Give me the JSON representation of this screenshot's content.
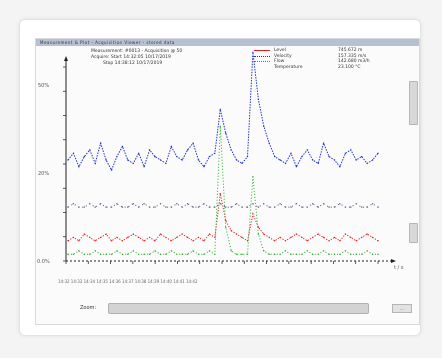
{
  "window": {
    "title": "Measurement & Plot - Acquisition Viewer - stored data"
  },
  "header": {
    "line1": "Measurement: #0013 - Acquisition @ 50",
    "line2": "Acquire: Start 14:32:05  10/17/2019",
    "line3": "Stop  14:38:12  10/17/2019"
  },
  "legend": [
    {
      "label": "Level",
      "value": "745.672  m",
      "color": "#dd2222",
      "style": "solid"
    },
    {
      "label": "Velocity",
      "value": "157.335  m/s",
      "color": "#2233cc",
      "style": "dotted"
    },
    {
      "label": "Flow",
      "value": "142.680  m3/h",
      "color": "#22aa22",
      "style": "dotted"
    },
    {
      "label": "Temperature",
      "value": "23.100  °C",
      "color": "#444444",
      "style": "none"
    }
  ],
  "y_axis": {
    "top_label": "50%",
    "mid_label": "20%",
    "bottom_label": "0.0%"
  },
  "x_axis": {
    "end_label": "t / s",
    "tick_row": "14:32   14:33   14:34   14:35   14:36   14:37   14:38   14:39   14:40   14:41   14:42"
  },
  "footer": {
    "scroll_label": "Zoom:",
    "button_label": "..."
  },
  "colors": {
    "level": "#dd2222",
    "velocity": "#2233cc",
    "flow": "#22aa22",
    "temp": "#333333",
    "background": "#f4f4f4"
  },
  "chart_data": {
    "type": "line",
    "series": [
      {
        "name": "Velocity",
        "values": [
          30,
          32,
          28,
          31,
          33,
          29,
          35,
          30,
          27,
          31,
          34,
          30,
          29,
          32,
          28,
          33,
          31,
          30,
          29,
          34,
          31,
          30,
          33,
          35,
          30,
          28,
          31,
          32,
          45,
          38,
          33,
          30,
          29,
          31,
          62,
          48,
          40,
          35,
          31,
          30,
          29,
          32,
          28,
          31,
          33,
          30,
          29,
          35,
          31,
          30,
          28,
          32,
          33,
          30,
          31,
          29,
          30,
          32
        ]
      },
      {
        "name": "Level",
        "values": [
          6,
          7,
          6,
          8,
          7,
          6,
          7,
          8,
          6,
          7,
          6,
          7,
          8,
          7,
          6,
          7,
          6,
          8,
          7,
          6,
          7,
          8,
          7,
          6,
          7,
          6,
          8,
          7,
          20,
          12,
          9,
          8,
          7,
          6,
          14,
          10,
          8,
          7,
          6,
          7,
          6,
          7,
          8,
          7,
          6,
          7,
          8,
          7,
          6,
          7,
          6,
          8,
          7,
          6,
          7,
          8,
          7,
          6
        ]
      },
      {
        "name": "Flow",
        "values": [
          2,
          2,
          3,
          2,
          2,
          3,
          2,
          2,
          2,
          3,
          2,
          2,
          3,
          2,
          2,
          2,
          3,
          2,
          2,
          3,
          2,
          2,
          2,
          3,
          2,
          2,
          3,
          2,
          40,
          10,
          3,
          2,
          2,
          2,
          25,
          8,
          3,
          2,
          2,
          2,
          3,
          2,
          2,
          2,
          3,
          2,
          2,
          3,
          2,
          2,
          2,
          3,
          2,
          2,
          2,
          3,
          2,
          2
        ]
      },
      {
        "name": "Temperature",
        "values": [
          16,
          17,
          16,
          16,
          17,
          16,
          17,
          16,
          16,
          17,
          16,
          16,
          17,
          16,
          17,
          16,
          16,
          17,
          16,
          16,
          17,
          16,
          17,
          16,
          16,
          17,
          16,
          16,
          17,
          16,
          16,
          17,
          16,
          16,
          17,
          16,
          17,
          16,
          16,
          17,
          16,
          16,
          17,
          16,
          16,
          17,
          16,
          17,
          16,
          16,
          17,
          16,
          16,
          17,
          16,
          16,
          17,
          16
        ]
      }
    ],
    "ylim": [
      0,
      60
    ],
    "grid": false
  }
}
